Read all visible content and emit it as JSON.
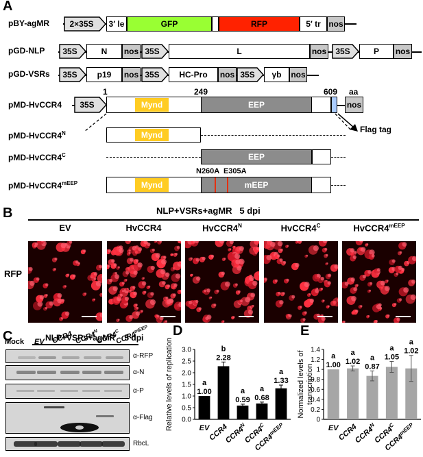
{
  "panels": {
    "A": "A",
    "B": "B",
    "C": "C",
    "D": "D",
    "E": "E"
  },
  "panelA": {
    "constructs": [
      "pBY-agMR",
      "pGD-NLP",
      "pGD-VSRs",
      "pMD-HvCCR4",
      "pMD-HvCCR4N",
      "pMD-HvCCR4C",
      "pMD-HvCCR4mEEP"
    ],
    "names": {
      "c5": {
        "base": "pMD-HvCCR4",
        "sup": "N"
      },
      "c6": {
        "base": "pMD-HvCCR4",
        "sup": "C"
      },
      "c7": {
        "base": "pMD-HvCCR4",
        "sup": "mEEP"
      }
    },
    "elements": {
      "p35s2x": "2×35S",
      "le3": "3′ le",
      "gfp": "GFP",
      "rfp": "RFP",
      "tr5": "5′ tr",
      "nos": "nos",
      "p35s": "35S",
      "n": "N",
      "l": "L",
      "p": "P",
      "p19": "p19",
      "hcpro": "HC-Pro",
      "yb": "γb",
      "mynd": "Mynd",
      "eep": "EEP",
      "meep": "mEEP"
    },
    "positions": {
      "p1": "1",
      "p249": "249",
      "p609": "609",
      "aa": "aa"
    },
    "mutations": "N260A  E305A",
    "flag": "Flag tag",
    "colors": {
      "gfp": "#99ff33",
      "rfp": "#ff2200",
      "mynd": "#ffcc22",
      "eep": "#8c8c8c",
      "nos": "#c8c8c8",
      "promoter": "#e0e0e0",
      "flag": "#aaccff"
    }
  },
  "panelB": {
    "condition": "NLP+VSRs+agMR   5 dpi",
    "row_label": "RFP",
    "images": [
      {
        "label": "EV"
      },
      {
        "label": "HvCCR4"
      },
      {
        "label": "HvCCR4",
        "sup": "N"
      },
      {
        "label": "HvCCR4",
        "sup": "C"
      },
      {
        "label": "HvCCR4",
        "sup": "mEEP"
      }
    ]
  },
  "panelC": {
    "condition": "NLP+VSRs+agMR    5 dpi",
    "mock": "Mock",
    "lanes": [
      "EV",
      "CCR4",
      "CCR4N",
      "CCR4C",
      "CCR4mEEP"
    ],
    "lane_parts": [
      [
        "EV",
        ""
      ],
      [
        "CCR4",
        ""
      ],
      [
        "CCR4",
        "N"
      ],
      [
        "CCR4",
        "C"
      ],
      [
        "CCR4",
        "mEEP"
      ]
    ],
    "blots": [
      "α-RFP",
      "α-N",
      "α-P",
      "α-Flag",
      "RbcL"
    ]
  },
  "chart_data": [
    {
      "type": "bar",
      "ylabel": "Relative levels of replication",
      "categories": [
        "EV",
        "CCR4",
        "CCR4N",
        "CCR4C",
        "CCR4mEEP"
      ],
      "cat_parts": [
        [
          "EV",
          ""
        ],
        [
          "CCR4",
          ""
        ],
        [
          "CCR4",
          "N"
        ],
        [
          "CCR4",
          "C"
        ],
        [
          "CCR4",
          "mEEP"
        ]
      ],
      "values": [
        1.0,
        2.28,
        0.59,
        0.68,
        1.33
      ],
      "errors": [
        0,
        0.18,
        0.06,
        0.06,
        0.14
      ],
      "value_labels": [
        "1.00",
        "2.28",
        "0.59",
        "0.68",
        "1.33"
      ],
      "letters": [
        "a",
        "b",
        "a",
        "a",
        "a"
      ],
      "ylim": [
        0,
        3
      ],
      "yticks": [
        "0.0",
        "0.5",
        "1.0",
        "1.5",
        "2.0",
        "2.5",
        "3.0"
      ],
      "color": "#000000"
    },
    {
      "type": "bar",
      "ylabel": "Normalized levels of transcription",
      "categories": [
        "EV",
        "CCR4",
        "CCR4N",
        "CCR4C",
        "CCR4mEEP"
      ],
      "cat_parts": [
        [
          "EV",
          ""
        ],
        [
          "CCR4",
          ""
        ],
        [
          "CCR4",
          "N"
        ],
        [
          "CCR4",
          "C"
        ],
        [
          "CCR4",
          "mEEP"
        ]
      ],
      "values": [
        1.0,
        1.02,
        0.87,
        1.05,
        1.02
      ],
      "errors": [
        0,
        0.05,
        0.1,
        0.11,
        0.26
      ],
      "value_labels": [
        "1.00",
        "1.02",
        "0.87",
        "1.05",
        "1.02"
      ],
      "letters": [
        "a",
        "a",
        "a",
        "a",
        "a"
      ],
      "ylim": [
        0,
        1.4
      ],
      "yticks": [
        "0",
        "0.2",
        "0.4",
        "0.6",
        "0.8",
        "1",
        "1.2",
        "1.4"
      ],
      "color": "#a6a6a6"
    }
  ]
}
